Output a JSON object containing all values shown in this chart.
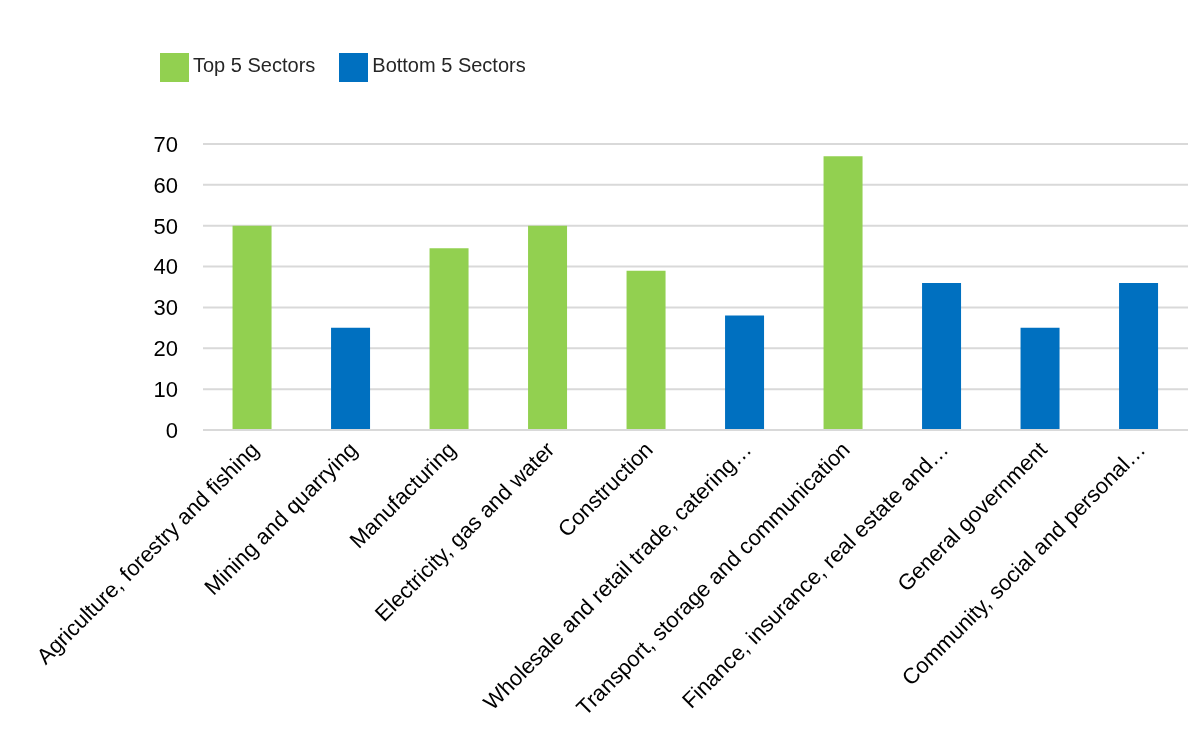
{
  "chart_data": {
    "type": "bar",
    "categories": [
      "Agriculture, forestry and fishing",
      "Mining and quarrying",
      "Manufacturing",
      "Electricity, gas and water",
      "Construction",
      "Wholesale and retail trade, catering…",
      "Transport, storage and communication",
      "Finance, insurance, real estate and…",
      "General government",
      "Community, social and personal…"
    ],
    "series": [
      {
        "name": "Top 5 Sectors",
        "color": "#92d050",
        "values": [
          50,
          null,
          44.5,
          50,
          39,
          null,
          67,
          null,
          null,
          null
        ]
      },
      {
        "name": "Bottom 5 Sectors",
        "color": "#0070c0",
        "values": [
          null,
          25,
          null,
          null,
          null,
          28,
          null,
          36,
          25,
          36
        ]
      }
    ],
    "ylim": [
      0,
      70
    ],
    "yticks": [
      0,
      10,
      20,
      30,
      40,
      50,
      60,
      70
    ],
    "grid": "y",
    "legend": "top left"
  }
}
